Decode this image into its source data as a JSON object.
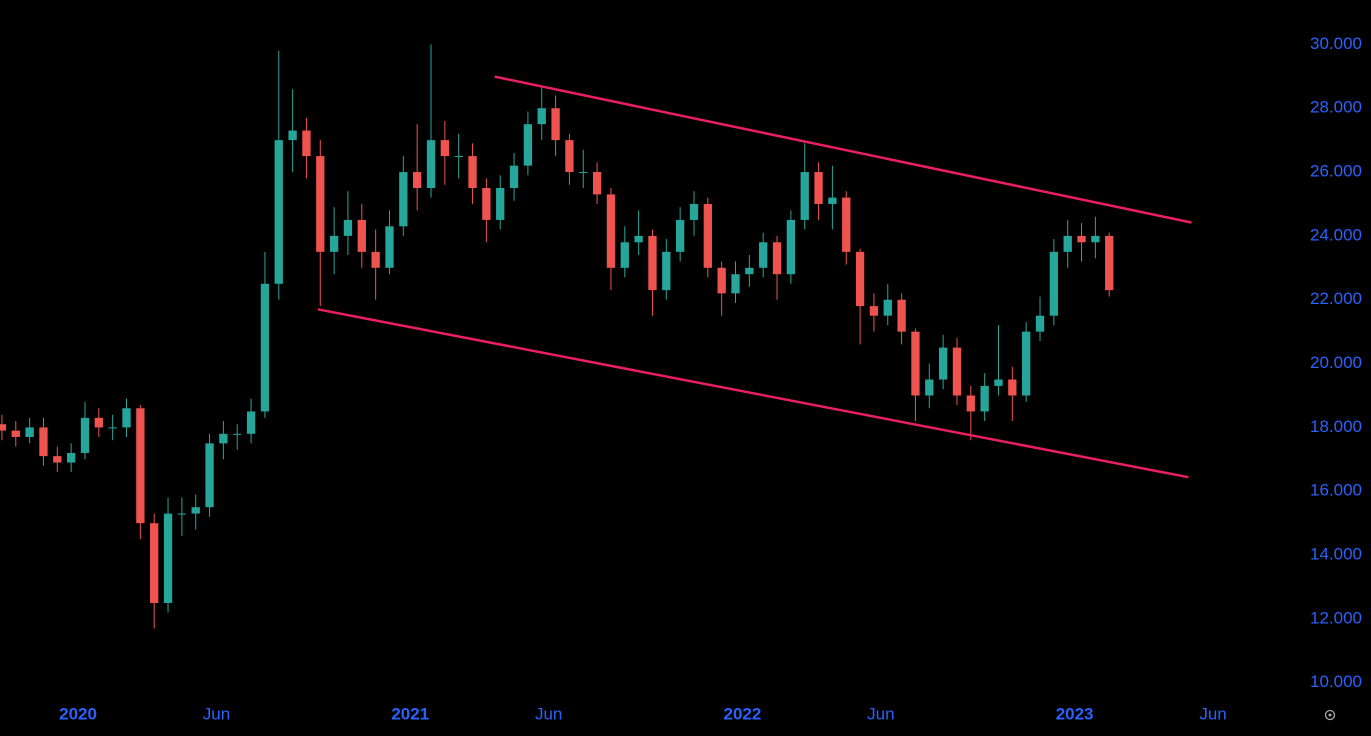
{
  "chart_data": {
    "type": "candlestick",
    "xlim": [
      -2.82,
      43.6
    ],
    "ylim": [
      9.46,
      31.39
    ],
    "yticks": [
      {
        "value": 10,
        "label": "10.000"
      },
      {
        "value": 12,
        "label": "12.000"
      },
      {
        "value": 14,
        "label": "14.000"
      },
      {
        "value": 16,
        "label": "16.000"
      },
      {
        "value": 18,
        "label": "18.000"
      },
      {
        "value": 20,
        "label": "20.000"
      },
      {
        "value": 22,
        "label": "22.000"
      },
      {
        "value": 24,
        "label": "24.000"
      },
      {
        "value": 26,
        "label": "26.000"
      },
      {
        "value": 28,
        "label": "28.000"
      },
      {
        "value": 30,
        "label": "30.000"
      }
    ],
    "xticks": [
      {
        "value": 0,
        "label": "2020"
      },
      {
        "value": 5,
        "label": "Jun"
      },
      {
        "value": 12,
        "label": "2021"
      },
      {
        "value": 17,
        "label": "Jun"
      },
      {
        "value": 24,
        "label": "2022"
      },
      {
        "value": 29,
        "label": "Jun"
      },
      {
        "value": 36,
        "label": "2023"
      },
      {
        "value": 41,
        "label": "Jun"
      }
    ],
    "tick_color": "#2962ff",
    "up_color": "#26a69a",
    "down_color": "#ef5350",
    "trend_color": "#e91e63",
    "x": [
      -2.75,
      -2.25,
      -1.75,
      -1.25,
      -0.75,
      -0.25,
      0.25,
      0.75,
      1.25,
      1.75,
      2.25,
      2.75,
      3.25,
      3.75,
      4.25,
      4.75,
      5.25,
      5.75,
      6.25,
      6.75,
      7.25,
      7.75,
      8.25,
      8.75,
      9.25,
      9.75,
      10.25,
      10.75,
      11.25,
      11.75,
      12.25,
      12.75,
      13.25,
      13.75,
      14.25,
      14.75,
      15.25,
      15.75,
      16.25,
      16.75,
      17.25,
      17.75,
      18.25,
      18.75,
      19.25,
      19.75,
      20.25,
      20.75,
      21.25,
      21.75,
      22.25,
      22.75,
      23.25,
      23.75,
      24.25,
      24.75,
      25.25,
      25.75,
      26.25,
      26.75,
      27.25,
      27.75,
      28.25,
      28.75,
      29.25,
      29.75,
      30.25,
      30.75,
      31.25,
      31.75,
      32.25,
      32.75,
      33.25,
      33.75,
      34.25,
      34.75,
      35.25,
      35.75,
      36.25,
      36.75,
      37.25
    ],
    "open": [
      18.1,
      17.9,
      17.7,
      18.0,
      17.1,
      16.9,
      17.2,
      18.3,
      18.0,
      18.0,
      18.6,
      15.0,
      12.5,
      15.3,
      15.3,
      15.5,
      17.5,
      17.8,
      17.8,
      18.5,
      22.5,
      27.0,
      27.3,
      26.5,
      23.5,
      24.0,
      24.5,
      23.5,
      23.0,
      24.3,
      26.0,
      25.5,
      27.0,
      26.5,
      26.5,
      25.5,
      24.5,
      25.5,
      26.2,
      27.5,
      28.0,
      27.0,
      26.0,
      26.0,
      25.3,
      23.0,
      23.8,
      24.0,
      22.3,
      23.5,
      24.5,
      25.0,
      23.0,
      22.2,
      22.8,
      23.0,
      23.8,
      22.8,
      24.5,
      26.0,
      25.0,
      25.2,
      23.5,
      21.8,
      21.5,
      22.0,
      21.0,
      19.0,
      19.5,
      20.5,
      19.0,
      18.5,
      19.3,
      19.5,
      19.0,
      21.0,
      21.5,
      23.5,
      24.0,
      23.8,
      24.0
    ],
    "high": [
      18.4,
      18.2,
      18.3,
      18.3,
      17.4,
      17.5,
      18.8,
      18.6,
      18.4,
      18.9,
      18.7,
      15.3,
      15.8,
      15.8,
      15.9,
      17.8,
      18.2,
      18.1,
      18.9,
      23.5,
      29.8,
      28.6,
      27.7,
      27.0,
      24.9,
      25.4,
      25.0,
      24.2,
      24.8,
      26.5,
      27.5,
      30.0,
      27.6,
      27.2,
      26.9,
      25.8,
      25.9,
      26.6,
      27.9,
      28.7,
      28.4,
      27.2,
      26.7,
      26.3,
      25.5,
      24.3,
      24.8,
      24.2,
      23.9,
      24.9,
      25.4,
      25.2,
      23.2,
      23.2,
      23.4,
      24.1,
      24.0,
      24.8,
      26.9,
      26.3,
      26.2,
      25.4,
      23.6,
      22.2,
      22.5,
      22.2,
      21.1,
      20.0,
      20.9,
      20.8,
      19.3,
      19.7,
      21.2,
      19.9,
      21.3,
      22.1,
      23.9,
      24.5,
      24.4,
      24.6,
      24.1
    ],
    "low": [
      17.6,
      17.4,
      17.5,
      16.8,
      16.6,
      16.6,
      17.0,
      17.7,
      17.6,
      17.7,
      14.5,
      11.7,
      12.2,
      14.6,
      14.8,
      15.2,
      17.0,
      17.3,
      17.5,
      18.3,
      22.0,
      26.0,
      25.8,
      21.8,
      22.8,
      23.4,
      23.0,
      22.0,
      22.8,
      24.0,
      24.8,
      25.2,
      25.6,
      25.8,
      25.0,
      23.8,
      24.2,
      25.1,
      25.9,
      27.0,
      26.5,
      25.6,
      25.5,
      25.0,
      22.3,
      22.7,
      23.4,
      21.5,
      22.0,
      23.2,
      24.0,
      22.7,
      21.5,
      21.9,
      22.4,
      22.7,
      22.0,
      22.5,
      24.2,
      24.5,
      24.2,
      23.1,
      20.6,
      21.0,
      21.2,
      20.6,
      18.2,
      18.6,
      19.2,
      18.7,
      17.6,
      18.2,
      19.0,
      18.2,
      18.8,
      20.7,
      21.2,
      23.0,
      23.2,
      23.3,
      22.1
    ],
    "close": [
      17.9,
      17.7,
      18.0,
      17.1,
      16.9,
      17.2,
      18.3,
      18.0,
      18.0,
      18.6,
      15.0,
      12.5,
      15.3,
      15.3,
      15.5,
      17.5,
      17.8,
      17.8,
      18.5,
      22.5,
      27.0,
      27.3,
      26.5,
      23.5,
      24.0,
      24.5,
      23.5,
      23.0,
      24.3,
      26.0,
      25.5,
      27.0,
      26.5,
      26.5,
      25.5,
      24.5,
      25.5,
      26.2,
      27.5,
      28.0,
      27.0,
      26.0,
      26.0,
      25.3,
      23.0,
      23.8,
      24.0,
      22.3,
      23.5,
      24.5,
      25.0,
      23.0,
      22.2,
      22.8,
      23.0,
      23.8,
      22.8,
      24.5,
      26.0,
      25.0,
      25.2,
      23.5,
      21.8,
      21.5,
      22.0,
      21.0,
      19.0,
      19.5,
      20.5,
      19.0,
      18.5,
      19.3,
      19.5,
      19.0,
      21.0,
      21.5,
      23.5,
      24.0,
      23.8,
      24.0,
      22.3
    ],
    "trend_lines": [
      {
        "x": [
          15.05,
          40.22
        ],
        "y": [
          28.99,
          24.42
        ]
      },
      {
        "x": [
          8.66,
          40.11
        ],
        "y": [
          21.7,
          16.44
        ]
      }
    ]
  }
}
